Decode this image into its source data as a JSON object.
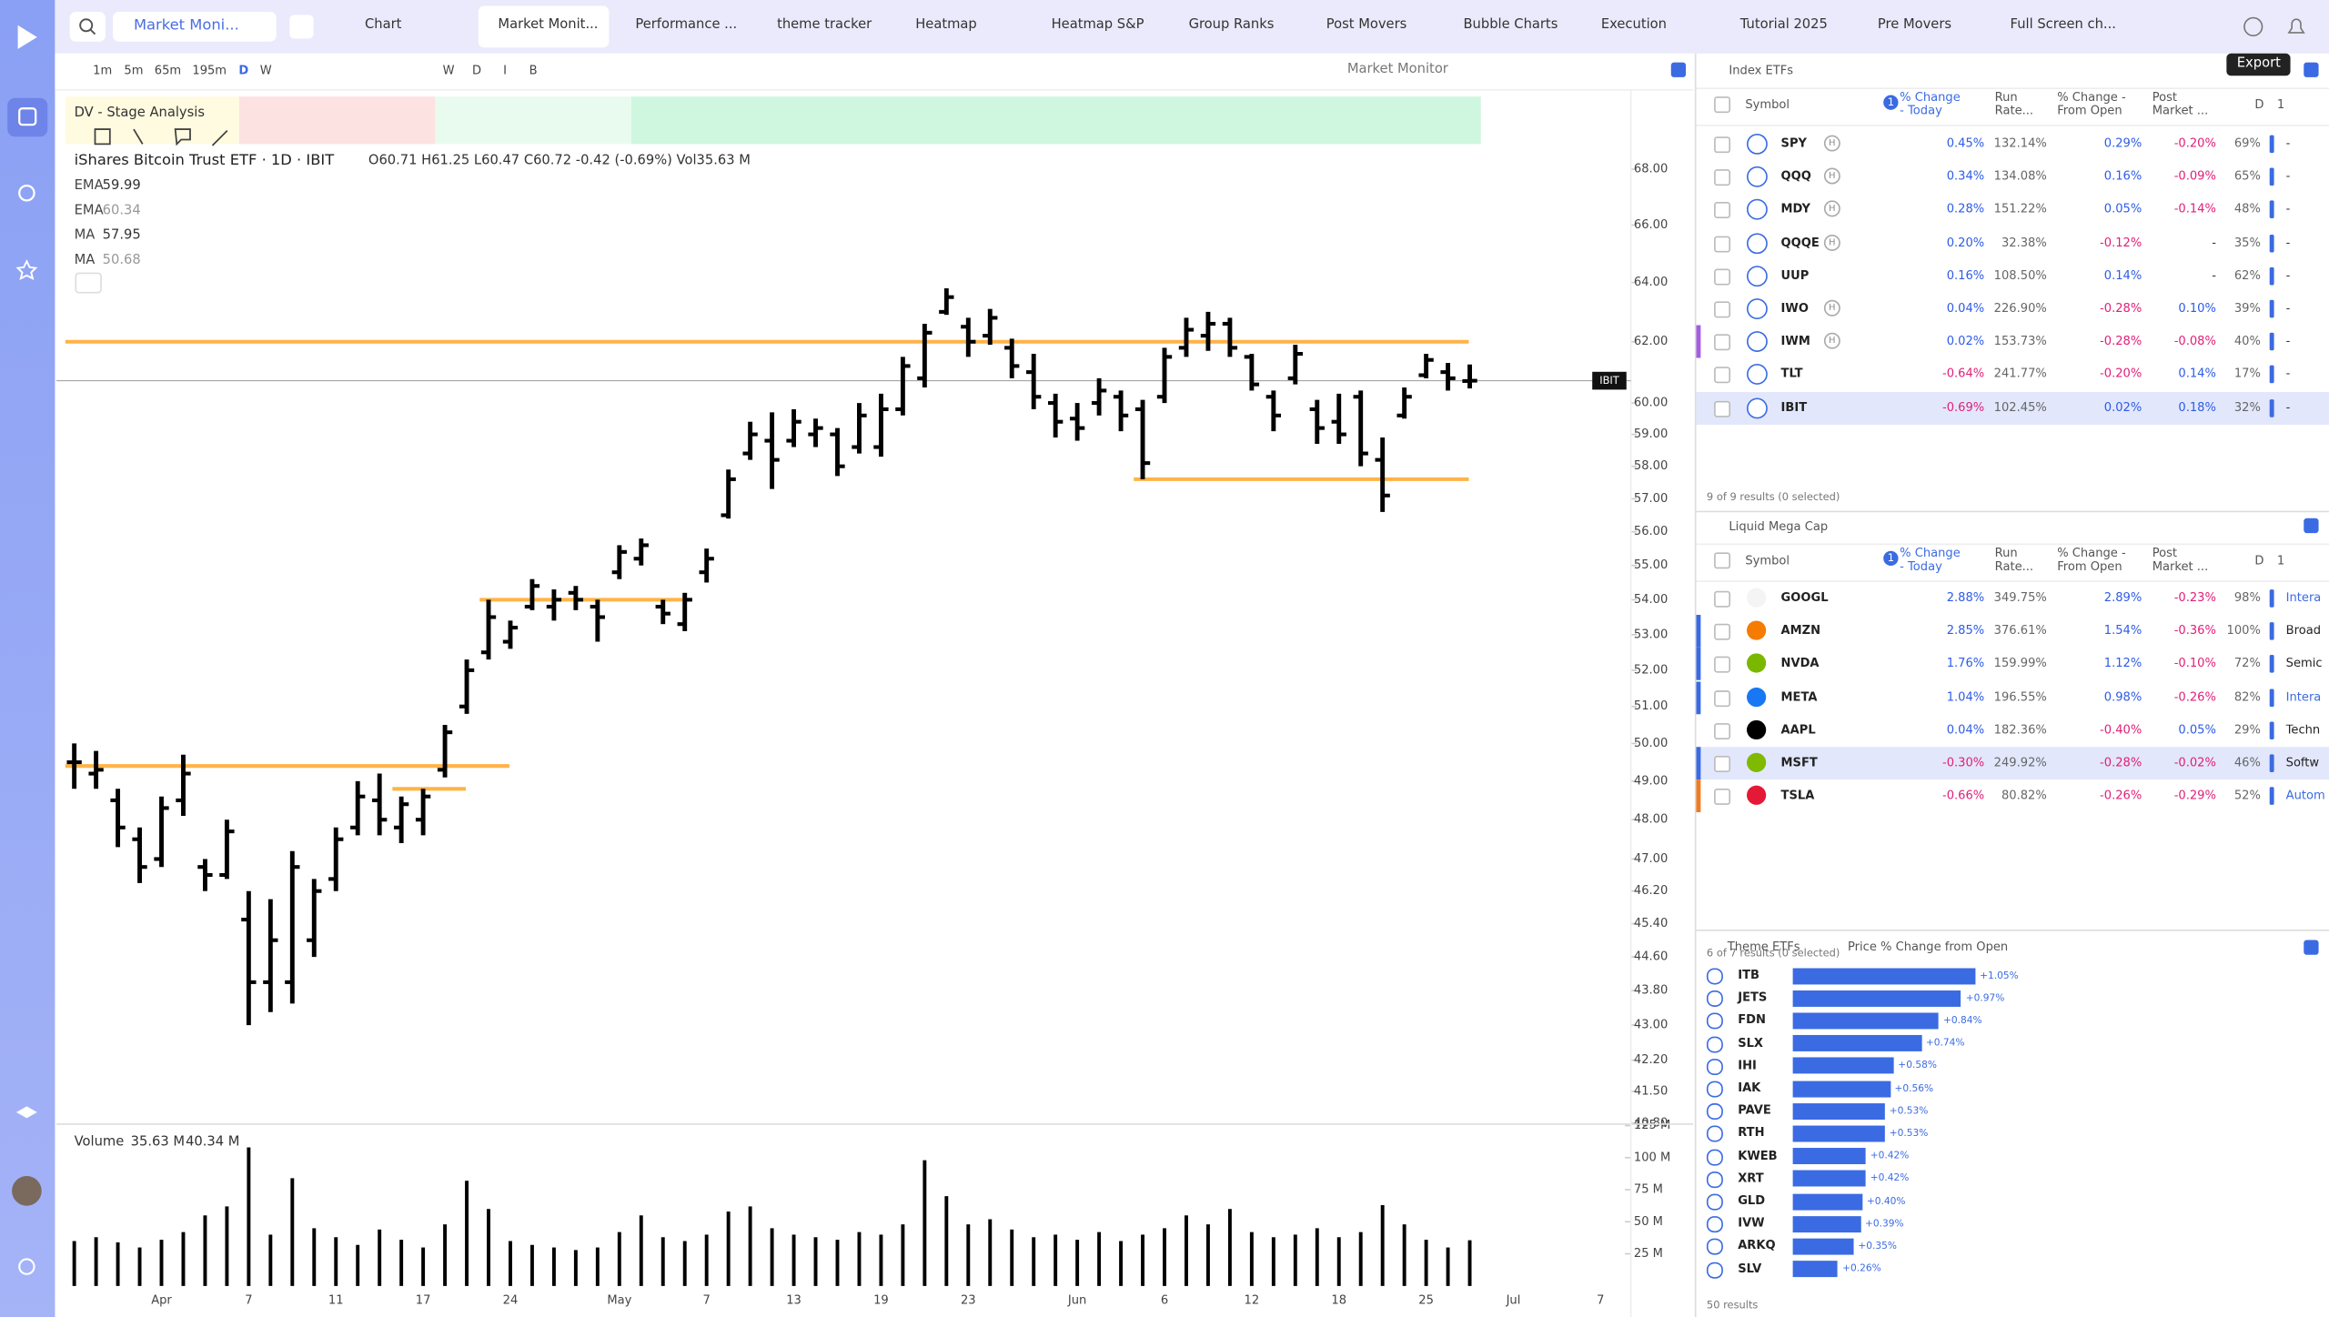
{
  "tabs": {
    "dropdown": "Market Moni...",
    "items": [
      "Chart",
      "Market Monit...",
      "Performance ...",
      "theme tracker",
      "Heatmap",
      "Heatmap S&P",
      "Group Ranks",
      "Post Movers",
      "Bubble Charts",
      "Execution",
      "Tutorial 2025",
      "Pre Movers",
      "Full Screen ch..."
    ],
    "tooltip": "Export"
  },
  "toolbar": {
    "intervals": [
      "1m",
      "5m",
      "65m",
      "195m",
      "D",
      "W"
    ],
    "styles": [
      "W",
      "D",
      "I",
      "B"
    ],
    "layout": "Market Monitor"
  },
  "chart_data": [
    {
      "type": "ohlc",
      "study": "DV - Stage Analysis",
      "title": "iShares Bitcoin Trust ETF · 1D · IBIT",
      "legend_text": "O60.71 H61.25 L60.47 C60.72 -0.42 (-0.69%) Vol35.63 M",
      "symbol_tag": "IBIT",
      "indicators": [
        {
          "name": "EMA",
          "value": 59.99
        },
        {
          "name": "EMA",
          "value": 60.34
        },
        {
          "name": "MA",
          "value": 57.95
        },
        {
          "name": "MA",
          "value": 50.68
        }
      ],
      "categories": [
        null,
        null,
        null,
        null,
        "Apr",
        null,
        null,
        null,
        "7",
        null,
        null,
        null,
        "11",
        null,
        null,
        null,
        "17",
        null,
        null,
        null,
        "24",
        null,
        null,
        null,
        null,
        "May",
        null,
        null,
        null,
        "7",
        null,
        null,
        null,
        "13",
        null,
        null,
        null,
        "19",
        null,
        null,
        null,
        "23",
        null,
        null,
        null,
        null,
        "Jun",
        null,
        null,
        null,
        "6",
        null,
        null,
        null,
        "12",
        null,
        null,
        null,
        "18",
        null,
        null,
        null,
        "25",
        null,
        null,
        null,
        "Jul",
        null,
        null,
        null,
        "7"
      ],
      "open": [
        49.5,
        49.2,
        48.5,
        47.5,
        47,
        48.5,
        46.8,
        46.6,
        45.5,
        44,
        44,
        45,
        46.5,
        47.8,
        48.5,
        47.8,
        48,
        49.3,
        51,
        52.5,
        52.8,
        53.8,
        53.8,
        54.2,
        53.8,
        54.8,
        55.2,
        53.8,
        53.3,
        54.8,
        56.5,
        58.4,
        58.8,
        58.8,
        59,
        59,
        58.6,
        58.6,
        59.8,
        60.8,
        63,
        62.5,
        62.2,
        61.8,
        61,
        60,
        59.5,
        60,
        60.2,
        59.8,
        60.2,
        61.8,
        62.2,
        62.6,
        61.5,
        60.2,
        60.8,
        59.8,
        59.4,
        60.2,
        58.2,
        59.6,
        60.9,
        61,
        60.71,
        null,
        null,
        null,
        null,
        null,
        null
      ],
      "high": [
        50,
        49.8,
        48.8,
        47.8,
        48.6,
        49.7,
        47,
        48,
        46.2,
        46,
        47.2,
        46.5,
        47.8,
        49,
        49.2,
        48.6,
        48.8,
        50.5,
        52.3,
        54,
        53.4,
        54.6,
        54.3,
        54.4,
        54,
        55.6,
        55.8,
        54,
        54.2,
        55.5,
        57.9,
        59.4,
        59.7,
        59.8,
        59.5,
        59.2,
        60,
        60.3,
        61.5,
        62.6,
        63.8,
        62.8,
        63.1,
        62.1,
        61.6,
        60.3,
        60,
        60.8,
        60.4,
        60.1,
        61.8,
        62.8,
        63,
        62.8,
        61.6,
        60.4,
        61.9,
        60.1,
        60.3,
        60.4,
        58.9,
        60.5,
        61.6,
        61.3,
        61.25,
        null,
        null,
        null,
        null,
        null,
        null
      ],
      "low": [
        48.8,
        48.8,
        47.3,
        46.4,
        46.8,
        48.1,
        46.2,
        46.5,
        43,
        43.3,
        43.5,
        44.6,
        46.2,
        47.6,
        47.6,
        47.4,
        47.6,
        49.1,
        50.8,
        52.3,
        52.6,
        53.7,
        53.4,
        53.7,
        52.8,
        54.6,
        55,
        53.3,
        53.1,
        54.5,
        56.4,
        58.2,
        57.3,
        58.6,
        58.6,
        57.7,
        58.4,
        58.3,
        59.6,
        60.5,
        62.9,
        61.5,
        61.9,
        60.8,
        59.8,
        58.9,
        58.8,
        59.6,
        59.1,
        57.6,
        60,
        61.5,
        61.7,
        61.5,
        60.4,
        59.1,
        60.6,
        58.7,
        58.7,
        58,
        56.6,
        59.5,
        60.8,
        60.4,
        60.47,
        null,
        null,
        null,
        null,
        null,
        null
      ],
      "close": [
        49.5,
        49.3,
        47.8,
        46.8,
        48.3,
        49.2,
        46.6,
        47.7,
        44,
        45,
        46.8,
        46.2,
        47.5,
        48.6,
        48,
        48.4,
        48.6,
        50.3,
        52,
        53.5,
        53.2,
        54.4,
        54,
        54,
        53.5,
        55.4,
        55.6,
        53.6,
        54,
        55.2,
        57.6,
        59,
        58.2,
        59.4,
        59.2,
        58,
        59.6,
        59.8,
        61.2,
        62.3,
        63.5,
        62,
        62.8,
        61.2,
        60.2,
        59.4,
        59.2,
        60.4,
        59.6,
        58.1,
        61.5,
        62.4,
        62.6,
        61.8,
        60.6,
        59.6,
        61.6,
        59.2,
        59,
        58.4,
        57.1,
        60.2,
        61.4,
        60.8,
        60.72,
        null,
        null,
        null,
        null,
        null,
        null
      ],
      "color": "#000000",
      "log_scale": true,
      "ylim": [
        40.78,
        68.76
      ],
      "yticks": [
        {
          "value": 68,
          "label": "68.00"
        },
        {
          "value": 66,
          "label": "66.00"
        },
        {
          "value": 64,
          "label": "64.00"
        },
        {
          "value": 62,
          "label": "62.00"
        },
        {
          "value": 60,
          "label": "60.00"
        },
        {
          "value": 59,
          "label": "59.00"
        },
        {
          "value": 58,
          "label": "58.00"
        },
        {
          "value": 57,
          "label": "57.00"
        },
        {
          "value": 56,
          "label": "56.00"
        },
        {
          "value": 55,
          "label": "55.00"
        },
        {
          "value": 54,
          "label": "54.00"
        },
        {
          "value": 53,
          "label": "53.00"
        },
        {
          "value": 52,
          "label": "52.00"
        },
        {
          "value": 51,
          "label": "51.00"
        },
        {
          "value": 50,
          "label": "50.00"
        },
        {
          "value": 49,
          "label": "49.00"
        },
        {
          "value": 48,
          "label": "48.00"
        },
        {
          "value": 47,
          "label": "47.00"
        },
        {
          "value": 46.2,
          "label": "46.20"
        },
        {
          "value": 45.4,
          "label": "45.40"
        },
        {
          "value": 44.6,
          "label": "44.60"
        },
        {
          "value": 43.8,
          "label": "43.80"
        },
        {
          "value": 43,
          "label": "43.00"
        },
        {
          "value": 42.2,
          "label": "42.20"
        },
        {
          "value": 41.5,
          "label": "41.50"
        },
        {
          "value": 40.8,
          "label": "40.80"
        }
      ],
      "levels": [
        {
          "value": 62,
          "from": 0,
          "to": 66
        },
        {
          "value": 57.6,
          "from": 49,
          "to": 66
        },
        {
          "value": 54,
          "from": 19,
          "to": 30
        },
        {
          "value": 49.4,
          "from": 0,
          "to": 22
        },
        {
          "value": 48.8,
          "from": 15,
          "to": 20
        }
      ],
      "level_color": "#ffb347",
      "volume_label": "Volume",
      "volume_texts": [
        "35.63 M",
        "40.34 M"
      ],
      "volume": [
        35,
        38,
        34,
        30,
        36,
        42,
        55,
        62,
        108,
        40,
        84,
        45,
        38,
        32,
        44,
        36,
        30,
        48,
        82,
        60,
        35,
        32,
        30,
        28,
        30,
        42,
        55,
        38,
        35,
        40,
        58,
        62,
        45,
        40,
        38,
        36,
        42,
        40,
        48,
        98,
        70,
        48,
        52,
        44,
        38,
        40,
        36,
        42,
        35,
        40,
        45,
        55,
        48,
        60,
        42,
        38,
        40,
        45,
        38,
        42,
        63,
        48,
        36,
        30,
        35.63,
        null,
        null,
        null,
        null,
        null,
        null
      ],
      "volume_lim": [
        0,
        125
      ],
      "volume_ticks": [
        {
          "value": 125,
          "label": "125 M"
        },
        {
          "value": 100,
          "label": "100 M"
        },
        {
          "value": 75,
          "label": "75 M"
        },
        {
          "value": 50,
          "label": "50 M"
        },
        {
          "value": 25,
          "label": "25 M"
        }
      ]
    },
    {
      "type": "bar",
      "orientation": "horizontal",
      "title": "Theme ETFs",
      "subtitle": "Price % Change from Open",
      "color": "#3b6be3",
      "categories": [
        "ITB",
        "JETS",
        "FDN",
        "SLX",
        "IHI",
        "IAK",
        "PAVE",
        "RTH",
        "KWEB",
        "XRT",
        "GLD",
        "IVW",
        "ARKQ",
        "SLV"
      ],
      "values": [
        1.05,
        0.97,
        0.84,
        0.74,
        0.58,
        0.56,
        0.53,
        0.53,
        0.42,
        0.42,
        0.4,
        0.39,
        0.35,
        0.26
      ],
      "value_labels": [
        "+1.05%",
        "+0.97%",
        "+0.84%",
        "+0.74%",
        "+0.58%",
        "+0.56%",
        "+0.53%",
        "+0.53%",
        "+0.42%",
        "+0.42%",
        "+0.40%",
        "+0.39%",
        "+0.35%",
        "+0.26%"
      ],
      "footer": "50 results"
    }
  ],
  "index_etfs": {
    "title": "Index ETFs",
    "columns": [
      "Symbol",
      "% Change - Today",
      "Run Rate...",
      "% Change - From Open",
      "Post Market ...",
      "D",
      "1"
    ],
    "sort_badge": "1",
    "footer": "9 of 9 results (0 selected)",
    "rows": [
      {
        "symbol": "SPY",
        "badge": "H",
        "cells": [
          "0.45%",
          "132.14%",
          "0.29%",
          "-0.20%",
          "69%",
          "-"
        ]
      },
      {
        "symbol": "QQQ",
        "badge": "H",
        "cells": [
          "0.34%",
          "134.08%",
          "0.16%",
          "-0.09%",
          "65%",
          "-"
        ]
      },
      {
        "symbol": "MDY",
        "badge": "H",
        "cells": [
          "0.28%",
          "151.22%",
          "0.05%",
          "-0.14%",
          "48%",
          "-"
        ]
      },
      {
        "symbol": "QQQE",
        "badge": "H",
        "cells": [
          "0.20%",
          "32.38%",
          "-0.12%",
          "-",
          "35%",
          "-"
        ]
      },
      {
        "symbol": "UUP",
        "cells": [
          "0.16%",
          "108.50%",
          "0.14%",
          "-",
          "62%",
          "-"
        ]
      },
      {
        "symbol": "IWO",
        "badge": "H",
        "cells": [
          "0.04%",
          "226.90%",
          "-0.28%",
          "0.10%",
          "39%",
          "-"
        ]
      },
      {
        "symbol": "IWM",
        "badge": "H",
        "cells": [
          "0.02%",
          "153.73%",
          "-0.28%",
          "-0.08%",
          "40%",
          "-"
        ]
      },
      {
        "symbol": "TLT",
        "cells": [
          "-0.64%",
          "241.77%",
          "-0.20%",
          "0.14%",
          "17%",
          "-"
        ]
      },
      {
        "symbol": "IBIT",
        "cells": [
          "-0.69%",
          "102.45%",
          "0.02%",
          "0.18%",
          "32%",
          "-"
        ]
      }
    ]
  },
  "mega_cap": {
    "title": "Liquid Mega Cap",
    "columns": [
      "Symbol",
      "% Change - Today",
      "Run Rate...",
      "% Change - From Open",
      "Post Market ...",
      "D",
      "1"
    ],
    "sort_badge": "1",
    "footer": "6 of 7 results (0 selected)",
    "rows": [
      {
        "symbol": "GOOGL",
        "cells": [
          "2.88%",
          "349.75%",
          "2.89%",
          "-0.23%",
          "98%",
          "Intera"
        ]
      },
      {
        "symbol": "AMZN",
        "cells": [
          "2.85%",
          "376.61%",
          "1.54%",
          "-0.36%",
          "100%",
          "Broad"
        ]
      },
      {
        "symbol": "NVDA",
        "cells": [
          "1.76%",
          "159.99%",
          "1.12%",
          "-0.10%",
          "72%",
          "Semic"
        ]
      },
      {
        "symbol": "META",
        "cells": [
          "1.04%",
          "196.55%",
          "0.98%",
          "-0.26%",
          "82%",
          "Intera"
        ]
      },
      {
        "symbol": "AAPL",
        "cells": [
          "0.04%",
          "182.36%",
          "-0.40%",
          "0.05%",
          "29%",
          "Techn"
        ]
      },
      {
        "symbol": "MSFT",
        "cells": [
          "-0.30%",
          "249.92%",
          "-0.28%",
          "-0.02%",
          "46%",
          "Softw"
        ]
      },
      {
        "symbol": "TSLA",
        "cells": [
          "-0.66%",
          "80.82%",
          "-0.26%",
          "-0.29%",
          "52%",
          "Autom"
        ]
      }
    ]
  }
}
